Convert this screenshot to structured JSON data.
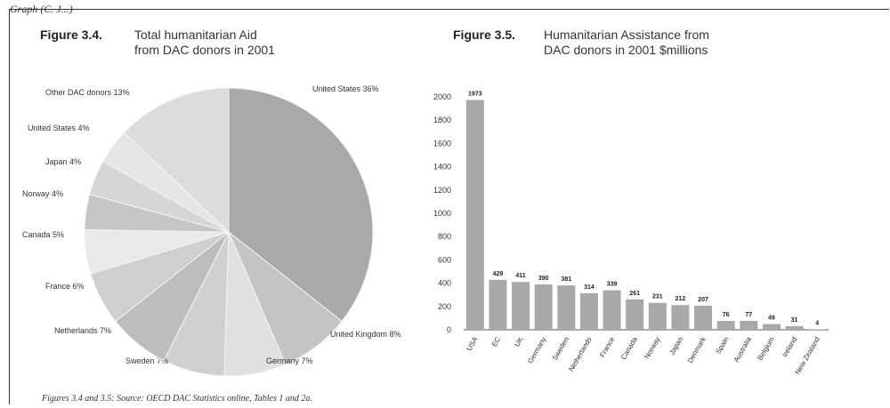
{
  "header_fragment": "Graph (C. J...)",
  "figures": {
    "pie": {
      "number": "Figure 3.4.",
      "title_line1": "Total humanitarian Aid",
      "title_line2": "from DAC donors in 2001"
    },
    "bar": {
      "number": "Figure 3.5.",
      "title_line1": "Humanitarian Assistance from",
      "title_line2": "DAC donors in 2001 $millions"
    }
  },
  "caption": "Figures 3.4 and 3.5: Source: OECD DAC Statistics online, Tables 1 and 2a.",
  "colors": {
    "pie_main": "#a9a9a9",
    "bar": "#a8a8a8",
    "axis": "#555555"
  },
  "chart_data": [
    {
      "type": "pie",
      "title": "Total humanitarian Aid from DAC donors in 2001",
      "slices": [
        {
          "label": "United States 36%",
          "value": 36,
          "color": "#a9a9a9"
        },
        {
          "label": "United Kingdom 8%",
          "value": 8,
          "color": "#c4c4c4"
        },
        {
          "label": "Germany 7%",
          "value": 7,
          "color": "#e0e0e0"
        },
        {
          "label": "Sweden 7%",
          "value": 7,
          "color": "#d0d0d0"
        },
        {
          "label": "Netherlands 7%",
          "value": 7,
          "color": "#bdbdbd"
        },
        {
          "label": "France 6%",
          "value": 6,
          "color": "#cfcfcf"
        },
        {
          "label": "Canada 5%",
          "value": 5,
          "color": "#e9e9e9"
        },
        {
          "label": "Norway 4%",
          "value": 4,
          "color": "#c6c6c6"
        },
        {
          "label": "Japan 4%",
          "value": 4,
          "color": "#d6d6d6"
        },
        {
          "label": "United States 4%",
          "value": 4,
          "color": "#e6e6e6"
        },
        {
          "label": "Other DAC donors 13%",
          "value": 13,
          "color": "#dcdcdc"
        }
      ]
    },
    {
      "type": "bar",
      "title": "Humanitarian Assistance from DAC donors in 2001 $millions",
      "categories": [
        "USA",
        "EC",
        "UK",
        "Germany",
        "Sweden",
        "Netherlands",
        "France",
        "Canada",
        "Norway",
        "Japan",
        "Denmark",
        "Spain",
        "Australia",
        "Belgium",
        "Ireland",
        "New Zealand"
      ],
      "values": [
        1973,
        429,
        411,
        390,
        381,
        314,
        339,
        261,
        231,
        212,
        207,
        76,
        77,
        49,
        31,
        4
      ],
      "data_labels": [
        "1973",
        "429",
        "411",
        "390",
        "381",
        "314",
        "339",
        "261",
        "231",
        "212",
        "207",
        "76",
        "77",
        "49",
        "31",
        "4"
      ],
      "ylim": [
        0,
        2000
      ],
      "yticks": [
        0,
        200,
        400,
        600,
        800,
        1000,
        1200,
        1400,
        1600,
        1800,
        2000
      ],
      "grid": false
    }
  ]
}
